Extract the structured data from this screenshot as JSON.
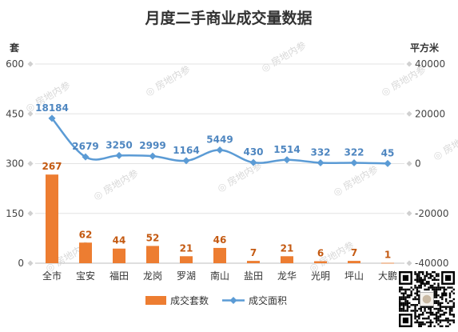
{
  "chart_data": {
    "type": "bar+line",
    "title": "月度二手商业成交量数据",
    "y_left_label": "套",
    "y_right_label": "平方米",
    "y_left_range": [
      0,
      600
    ],
    "y_left_ticks": [
      "0",
      "150",
      "300",
      "450",
      "600"
    ],
    "y_right_range": [
      -40000,
      40000
    ],
    "y_right_ticks": [
      "-40000",
      "-20000",
      "0",
      "20000",
      "40000"
    ],
    "categories": [
      "全市",
      "宝安",
      "福田",
      "龙岗",
      "罗湖",
      "南山",
      "盐田",
      "龙华",
      "光明",
      "坪山",
      "大鹏"
    ],
    "series": [
      {
        "name": "成交套数",
        "type": "bar",
        "axis": "left",
        "color": "#ed7d31",
        "values": [
          267,
          62,
          44,
          52,
          21,
          46,
          7,
          21,
          6,
          7,
          1
        ]
      },
      {
        "name": "成交面积",
        "type": "line",
        "axis": "right",
        "color": "#5b9bd5",
        "values": [
          18184,
          2679,
          3250,
          2999,
          1164,
          5449,
          430,
          1514,
          332,
          322,
          45
        ]
      }
    ],
    "legend_position": "bottom",
    "grid": true
  },
  "watermark": "房地内参"
}
